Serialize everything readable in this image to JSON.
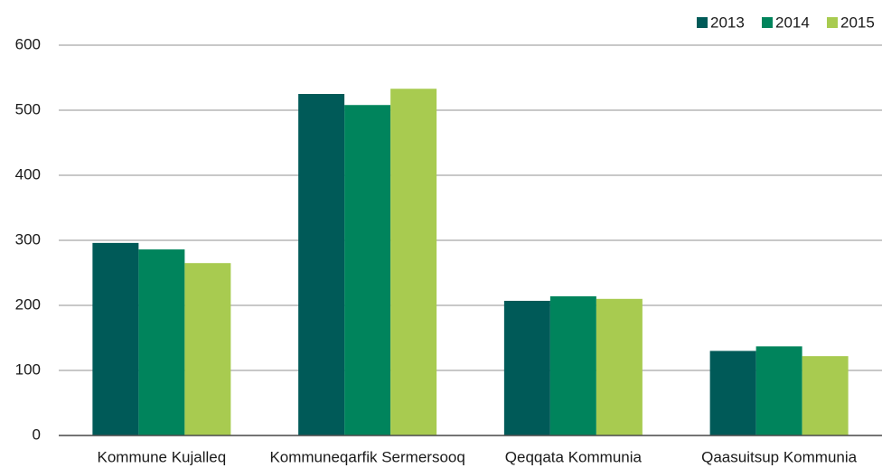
{
  "chart_data": {
    "type": "bar",
    "categories": [
      "Kommune Kujalleq",
      "Kommuneqarfik Sermersooq",
      "Qeqqata Kommunia",
      "Qaasuitsup Kommunia"
    ],
    "series": [
      {
        "name": "2013",
        "color": "#005a58",
        "values": [
          296,
          525,
          207,
          130
        ]
      },
      {
        "name": "2014",
        "color": "#00845c",
        "values": [
          286,
          508,
          214,
          137
        ]
      },
      {
        "name": "2015",
        "color": "#a8cb50",
        "values": [
          265,
          533,
          210,
          122
        ]
      }
    ],
    "ylim": [
      0,
      600
    ],
    "yticks": [
      0,
      100,
      200,
      300,
      400,
      500,
      600
    ],
    "grid": true,
    "legend": "top-right"
  }
}
